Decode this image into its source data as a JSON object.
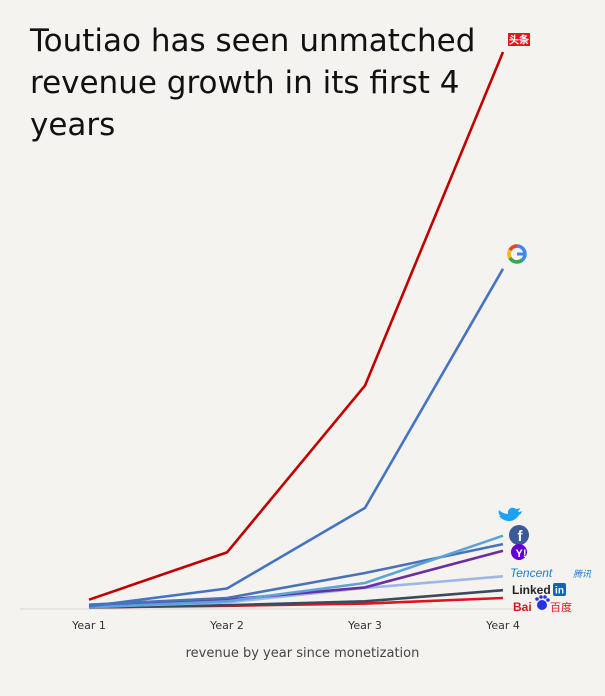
{
  "chart_data": {
    "type": "line",
    "title": "Toutiao has seen unmatched revenue growth in its first 4 years",
    "xlabel": "revenue by year since monetization",
    "ylabel": "",
    "categories": [
      "Year 1",
      "Year 2",
      "Year 3",
      "Year 4"
    ],
    "ylim": [
      0,
      100
    ],
    "grid": false,
    "legend": "right-end labels (logos)",
    "series": [
      {
        "name": "头条",
        "color": "#c00000",
        "values": [
          1.5,
          10,
          40,
          100
        ]
      },
      {
        "name": "G",
        "color": "#4472c4",
        "values": [
          0.3,
          3.5,
          18,
          61
        ]
      },
      {
        "name": "Twitter",
        "color": "#5ba3d9",
        "values": [
          0.1,
          1.2,
          4.5,
          13
        ]
      },
      {
        "name": "f",
        "color": "#4a72b8",
        "values": [
          0.6,
          1.8,
          6.3,
          11.5
        ]
      },
      {
        "name": "Y!",
        "color": "#6a2fa0",
        "values": [
          0.2,
          1.5,
          3.7,
          10.3
        ]
      },
      {
        "name": "Tencent 腾讯",
        "color": "#9db7e8",
        "values": [
          0.2,
          1.0,
          3.6,
          5.7
        ]
      },
      {
        "name": "Linked in",
        "color": "#3d4a5c",
        "values": [
          0.1,
          0.5,
          1.2,
          3.2
        ]
      },
      {
        "name": "Bai 百度",
        "color": "#e0141e",
        "values": [
          0.1,
          0.4,
          0.8,
          1.8
        ]
      }
    ]
  },
  "title_text": "Toutiao has seen unmatched revenue growth in its first 4 years",
  "xlabel_text": "revenue by year since monetization",
  "logos": {
    "toutiao": "头条",
    "google": "G",
    "facebook": "f",
    "yahoo": "Y!",
    "tencent": "Tencent",
    "tencent_cn": "腾讯",
    "linkedin": "Linked",
    "linkedin_in": "in",
    "baidu": "Bai",
    "baidu_cn": "百度"
  }
}
